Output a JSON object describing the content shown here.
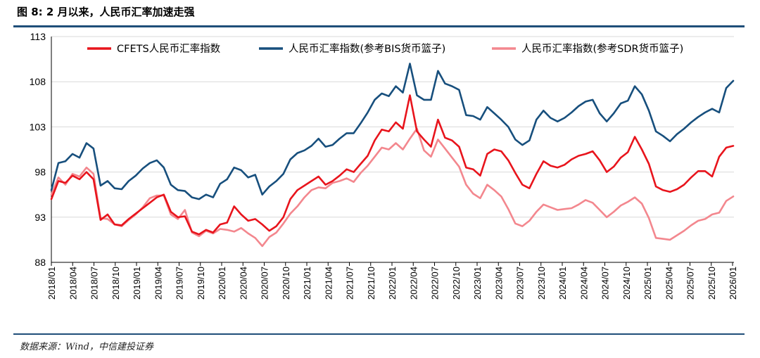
{
  "title": "图 8: 2 月以来，人民币汇率加速走强",
  "source": "数据来源：Wind，中信建投证券",
  "colors": {
    "cfets": "#e8141c",
    "bis": "#174f7d",
    "sdr": "#f3878e",
    "rule": "#1f4e79",
    "grid": "#d9d9d9"
  },
  "chart_data": {
    "type": "line",
    "title": "2 月以来，人民币汇率加速走强",
    "xlabel": "",
    "ylabel": "",
    "ylim": [
      88,
      113
    ],
    "yticks": [
      88,
      93,
      98,
      103,
      108,
      113
    ],
    "grid": true,
    "legend_position": "top",
    "x_start": "2018/01",
    "x_end": "2026/03",
    "xtick_labels": [
      "2018/01",
      "2018/04",
      "2018/07",
      "2018/10",
      "2019/01",
      "2019/04",
      "2019/07",
      "2019/10",
      "2020/01",
      "2020/04",
      "2020/07",
      "2020/10",
      "2021/01",
      "2021/04",
      "2021/07",
      "2021/10",
      "2022/01",
      "2022/04",
      "2022/07",
      "2022/10",
      "2023/01",
      "2023/04",
      "2023/07",
      "2023/10",
      "2024/01",
      "2024/04",
      "2024/07",
      "2024/10",
      "2025/01",
      "2025/04",
      "2025/07",
      "2025/10",
      "2026/01"
    ],
    "series": [
      {
        "name": "CFETS人民币汇率指数",
        "key": "cfets",
        "points": [
          [
            0,
            95.0
          ],
          [
            1,
            97.0
          ],
          [
            2,
            96.8
          ],
          [
            3,
            97.6
          ],
          [
            4,
            97.2
          ],
          [
            5,
            98.0
          ],
          [
            6,
            97.2
          ],
          [
            7,
            92.7
          ],
          [
            8,
            93.3
          ],
          [
            9,
            92.2
          ],
          [
            10,
            92.1
          ],
          [
            11,
            92.8
          ],
          [
            12,
            93.4
          ],
          [
            13,
            94.0
          ],
          [
            14,
            94.6
          ],
          [
            15,
            95.2
          ],
          [
            16,
            95.5
          ],
          [
            17,
            93.6
          ],
          [
            18,
            93.0
          ],
          [
            19,
            93.1
          ],
          [
            20,
            91.4
          ],
          [
            21,
            91.1
          ],
          [
            22,
            91.6
          ],
          [
            23,
            91.3
          ],
          [
            24,
            92.2
          ],
          [
            25,
            92.4
          ],
          [
            26,
            94.2
          ],
          [
            27,
            93.3
          ],
          [
            28,
            92.6
          ],
          [
            29,
            92.8
          ],
          [
            30,
            92.2
          ],
          [
            31,
            91.5
          ],
          [
            32,
            92.0
          ],
          [
            33,
            93.0
          ],
          [
            34,
            95.0
          ],
          [
            35,
            96.0
          ],
          [
            36,
            96.5
          ],
          [
            37,
            97.0
          ],
          [
            38,
            97.5
          ],
          [
            39,
            96.6
          ],
          [
            40,
            97.0
          ],
          [
            41,
            97.6
          ],
          [
            42,
            98.3
          ],
          [
            43,
            98.0
          ],
          [
            44,
            98.9
          ],
          [
            45,
            99.8
          ],
          [
            46,
            101.5
          ],
          [
            47,
            102.7
          ],
          [
            48,
            102.5
          ],
          [
            49,
            103.5
          ],
          [
            50,
            102.8
          ],
          [
            51,
            106.5
          ],
          [
            52,
            102.5
          ],
          [
            53,
            101.6
          ],
          [
            54,
            100.8
          ],
          [
            55,
            103.8
          ],
          [
            56,
            101.8
          ],
          [
            57,
            101.5
          ],
          [
            58,
            100.8
          ],
          [
            59,
            98.5
          ],
          [
            60,
            98.3
          ],
          [
            61,
            97.6
          ],
          [
            62,
            100.0
          ],
          [
            63,
            100.5
          ],
          [
            64,
            100.3
          ],
          [
            65,
            99.3
          ],
          [
            66,
            97.9
          ],
          [
            67,
            96.6
          ],
          [
            68,
            96.2
          ],
          [
            69,
            97.8
          ],
          [
            70,
            99.2
          ],
          [
            71,
            98.7
          ],
          [
            72,
            98.5
          ],
          [
            73,
            98.8
          ],
          [
            74,
            99.4
          ],
          [
            75,
            99.8
          ],
          [
            76,
            100.0
          ],
          [
            77,
            100.3
          ],
          [
            78,
            99.3
          ],
          [
            79,
            98.0
          ],
          [
            80,
            98.6
          ],
          [
            81,
            99.6
          ],
          [
            82,
            100.2
          ],
          [
            83,
            101.9
          ],
          [
            84,
            100.5
          ],
          [
            85,
            98.9
          ],
          [
            86,
            96.4
          ],
          [
            87,
            96.0
          ],
          [
            88,
            95.8
          ],
          [
            89,
            96.1
          ],
          [
            90,
            96.6
          ],
          [
            91,
            97.4
          ],
          [
            92,
            98.1
          ],
          [
            93,
            98.1
          ],
          [
            94,
            97.5
          ],
          [
            95,
            99.7
          ],
          [
            96,
            100.7
          ],
          [
            97,
            100.9
          ]
        ]
      },
      {
        "name": "人民币汇率指数(参考BIS货币篮子)",
        "key": "bis",
        "points": [
          [
            0,
            96.0
          ],
          [
            1,
            99.0
          ],
          [
            2,
            99.2
          ],
          [
            3,
            100.0
          ],
          [
            4,
            99.6
          ],
          [
            5,
            101.2
          ],
          [
            6,
            100.6
          ],
          [
            7,
            96.5
          ],
          [
            8,
            97.0
          ],
          [
            9,
            96.2
          ],
          [
            10,
            96.1
          ],
          [
            11,
            97.0
          ],
          [
            12,
            97.6
          ],
          [
            13,
            98.4
          ],
          [
            14,
            99.0
          ],
          [
            15,
            99.3
          ],
          [
            16,
            98.5
          ],
          [
            17,
            96.6
          ],
          [
            18,
            96.0
          ],
          [
            19,
            95.9
          ],
          [
            20,
            95.2
          ],
          [
            21,
            95.0
          ],
          [
            22,
            95.5
          ],
          [
            23,
            95.2
          ],
          [
            24,
            96.7
          ],
          [
            25,
            97.2
          ],
          [
            26,
            98.5
          ],
          [
            27,
            98.2
          ],
          [
            28,
            97.4
          ],
          [
            29,
            97.7
          ],
          [
            30,
            95.5
          ],
          [
            31,
            96.4
          ],
          [
            32,
            97.0
          ],
          [
            33,
            97.8
          ],
          [
            34,
            99.4
          ],
          [
            35,
            100.1
          ],
          [
            36,
            100.4
          ],
          [
            37,
            100.9
          ],
          [
            38,
            101.7
          ],
          [
            39,
            100.8
          ],
          [
            40,
            101.0
          ],
          [
            41,
            101.7
          ],
          [
            42,
            102.3
          ],
          [
            43,
            102.3
          ],
          [
            44,
            103.4
          ],
          [
            45,
            104.6
          ],
          [
            46,
            106.0
          ],
          [
            47,
            106.7
          ],
          [
            48,
            106.4
          ],
          [
            49,
            107.5
          ],
          [
            50,
            106.8
          ],
          [
            51,
            110.0
          ],
          [
            52,
            106.5
          ],
          [
            53,
            106.0
          ],
          [
            54,
            106.0
          ],
          [
            55,
            109.2
          ],
          [
            56,
            107.8
          ],
          [
            57,
            107.5
          ],
          [
            58,
            107.1
          ],
          [
            59,
            104.3
          ],
          [
            60,
            104.2
          ],
          [
            61,
            103.8
          ],
          [
            62,
            105.2
          ],
          [
            63,
            104.5
          ],
          [
            64,
            103.8
          ],
          [
            65,
            103.0
          ],
          [
            66,
            101.6
          ],
          [
            67,
            101.0
          ],
          [
            68,
            101.5
          ],
          [
            69,
            103.8
          ],
          [
            70,
            104.8
          ],
          [
            71,
            104.0
          ],
          [
            72,
            103.6
          ],
          [
            73,
            104.0
          ],
          [
            74,
            104.6
          ],
          [
            75,
            105.3
          ],
          [
            76,
            105.8
          ],
          [
            77,
            106.0
          ],
          [
            78,
            104.5
          ],
          [
            79,
            103.6
          ],
          [
            80,
            104.5
          ],
          [
            81,
            105.6
          ],
          [
            82,
            105.9
          ],
          [
            83,
            107.5
          ],
          [
            84,
            106.6
          ],
          [
            85,
            104.8
          ],
          [
            86,
            102.5
          ],
          [
            87,
            102.0
          ],
          [
            88,
            101.4
          ],
          [
            89,
            102.2
          ],
          [
            90,
            102.8
          ],
          [
            91,
            103.5
          ],
          [
            92,
            104.1
          ],
          [
            93,
            104.6
          ],
          [
            94,
            105.0
          ],
          [
            95,
            104.6
          ],
          [
            96,
            107.3
          ],
          [
            97,
            108.1
          ]
        ]
      },
      {
        "name": "人民币汇率指数(参考SDR货币篮子)",
        "key": "sdr",
        "points": [
          [
            0,
            95.5
          ],
          [
            1,
            97.4
          ],
          [
            2,
            96.6
          ],
          [
            3,
            97.8
          ],
          [
            4,
            97.5
          ],
          [
            5,
            98.5
          ],
          [
            6,
            97.8
          ],
          [
            7,
            92.9
          ],
          [
            8,
            92.8
          ],
          [
            9,
            92.2
          ],
          [
            10,
            92.0
          ],
          [
            11,
            92.7
          ],
          [
            12,
            93.3
          ],
          [
            13,
            94.1
          ],
          [
            14,
            95.1
          ],
          [
            15,
            95.4
          ],
          [
            16,
            95.4
          ],
          [
            17,
            93.3
          ],
          [
            18,
            92.8
          ],
          [
            19,
            93.8
          ],
          [
            20,
            91.3
          ],
          [
            21,
            90.9
          ],
          [
            22,
            91.5
          ],
          [
            23,
            91.2
          ],
          [
            24,
            91.7
          ],
          [
            25,
            91.6
          ],
          [
            26,
            91.4
          ],
          [
            27,
            91.8
          ],
          [
            28,
            91.2
          ],
          [
            29,
            90.7
          ],
          [
            30,
            89.8
          ],
          [
            31,
            90.8
          ],
          [
            32,
            91.3
          ],
          [
            33,
            92.3
          ],
          [
            34,
            93.4
          ],
          [
            35,
            94.2
          ],
          [
            36,
            95.2
          ],
          [
            37,
            96.0
          ],
          [
            38,
            96.3
          ],
          [
            39,
            96.2
          ],
          [
            40,
            96.8
          ],
          [
            41,
            97.0
          ],
          [
            42,
            97.3
          ],
          [
            43,
            96.9
          ],
          [
            44,
            97.9
          ],
          [
            45,
            98.7
          ],
          [
            46,
            99.7
          ],
          [
            47,
            100.7
          ],
          [
            48,
            100.5
          ],
          [
            49,
            101.2
          ],
          [
            50,
            100.5
          ],
          [
            51,
            101.7
          ],
          [
            52,
            102.8
          ],
          [
            53,
            100.4
          ],
          [
            54,
            99.7
          ],
          [
            55,
            101.6
          ],
          [
            56,
            100.6
          ],
          [
            57,
            99.6
          ],
          [
            58,
            98.6
          ],
          [
            59,
            96.6
          ],
          [
            60,
            95.6
          ],
          [
            61,
            95.1
          ],
          [
            62,
            96.6
          ],
          [
            63,
            96.0
          ],
          [
            64,
            95.3
          ],
          [
            65,
            93.9
          ],
          [
            66,
            92.3
          ],
          [
            67,
            92.0
          ],
          [
            68,
            92.6
          ],
          [
            69,
            93.6
          ],
          [
            70,
            94.4
          ],
          [
            71,
            94.1
          ],
          [
            72,
            93.8
          ],
          [
            73,
            93.9
          ],
          [
            74,
            94.0
          ],
          [
            75,
            94.4
          ],
          [
            76,
            94.9
          ],
          [
            77,
            94.6
          ],
          [
            78,
            93.8
          ],
          [
            79,
            93.0
          ],
          [
            80,
            93.6
          ],
          [
            81,
            94.3
          ],
          [
            82,
            94.7
          ],
          [
            83,
            95.2
          ],
          [
            84,
            94.5
          ],
          [
            85,
            92.9
          ],
          [
            86,
            90.7
          ],
          [
            87,
            90.6
          ],
          [
            88,
            90.5
          ],
          [
            89,
            91.0
          ],
          [
            90,
            91.5
          ],
          [
            91,
            92.1
          ],
          [
            92,
            92.6
          ],
          [
            93,
            92.8
          ],
          [
            94,
            93.3
          ],
          [
            95,
            93.5
          ],
          [
            96,
            94.8
          ],
          [
            97,
            95.3
          ]
        ]
      }
    ]
  }
}
